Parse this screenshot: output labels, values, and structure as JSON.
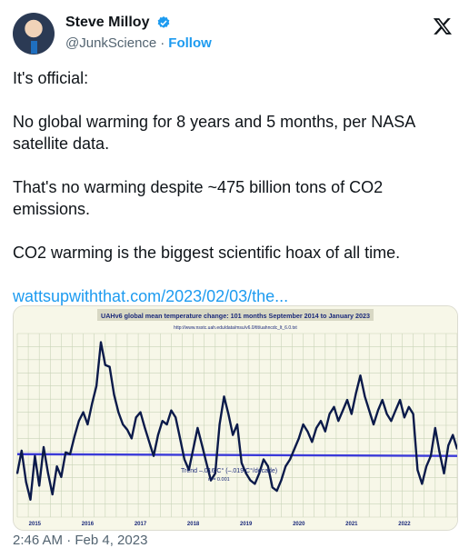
{
  "author": {
    "name": "Steve Milloy",
    "handle": "@JunkScience",
    "follow_label": "Follow",
    "separator": "·",
    "verified": true
  },
  "tweet": {
    "paragraphs": [
      "It's official:",
      "No global warming for 8 years and 5 months, per NASA satellite data.",
      "That's no warming despite ~475 billion tons of CO2 emissions.",
      "CO2 warming is the biggest scientific hoax of all time."
    ],
    "link": "wattsupwiththat.com/2023/02/03/the...",
    "timestamp": "2:46 AM · Feb 4, 2023"
  },
  "icons": {
    "verified": "verified-badge-icon",
    "platform": "x-logo-icon"
  },
  "colors": {
    "accent": "#1d9bf0",
    "chart_line": "#0b1a4a",
    "trend_line": "#3a3ad8",
    "chart_bg": "#f7f7e8"
  },
  "chart_data": {
    "type": "line",
    "title": "UAHv6 global mean temperature change: 101 months September 2014 to January 2023",
    "subtitle": "http://www.nsstc.uah.edu/data/msu/v6.0/tlt/uahncdc_lt_6.0.txt",
    "annotation": "Trend –.016 C° (–.019 C°/decade)",
    "annotation_r2": "r² = 0.001",
    "x_tick_labels": [
      "2015",
      "2016",
      "2017",
      "2018",
      "2019",
      "2020",
      "2021",
      "2022"
    ],
    "grid": true,
    "trend": [
      0.21,
      0.2
    ],
    "series": [
      {
        "values": [
          0.1,
          0.23,
          0.05,
          -0.05,
          0.2,
          0.03,
          0.25,
          0.1,
          -0.02,
          0.14,
          0.08,
          0.22,
          0.21,
          0.31,
          0.4,
          0.45,
          0.38,
          0.5,
          0.6,
          0.85,
          0.72,
          0.71,
          0.55,
          0.45,
          0.38,
          0.35,
          0.3,
          0.42,
          0.45,
          0.36,
          0.28,
          0.2,
          0.32,
          0.4,
          0.38,
          0.46,
          0.42,
          0.3,
          0.18,
          0.12,
          0.24,
          0.36,
          0.26,
          0.16,
          0.06,
          0.1,
          0.38,
          0.54,
          0.44,
          0.32,
          0.38,
          0.16,
          0.1,
          0.06,
          0.04,
          0.1,
          0.18,
          0.14,
          0.02,
          0.0,
          0.06,
          0.14,
          0.18,
          0.24,
          0.3,
          0.38,
          0.34,
          0.28,
          0.36,
          0.4,
          0.34,
          0.44,
          0.48,
          0.4,
          0.46,
          0.52,
          0.44,
          0.56,
          0.66,
          0.54,
          0.46,
          0.38,
          0.46,
          0.52,
          0.44,
          0.4,
          0.46,
          0.52,
          0.42,
          0.48,
          0.44,
          0.12,
          0.04,
          0.14,
          0.2,
          0.36,
          0.22,
          0.1,
          0.26,
          0.32,
          0.24
        ]
      }
    ]
  }
}
